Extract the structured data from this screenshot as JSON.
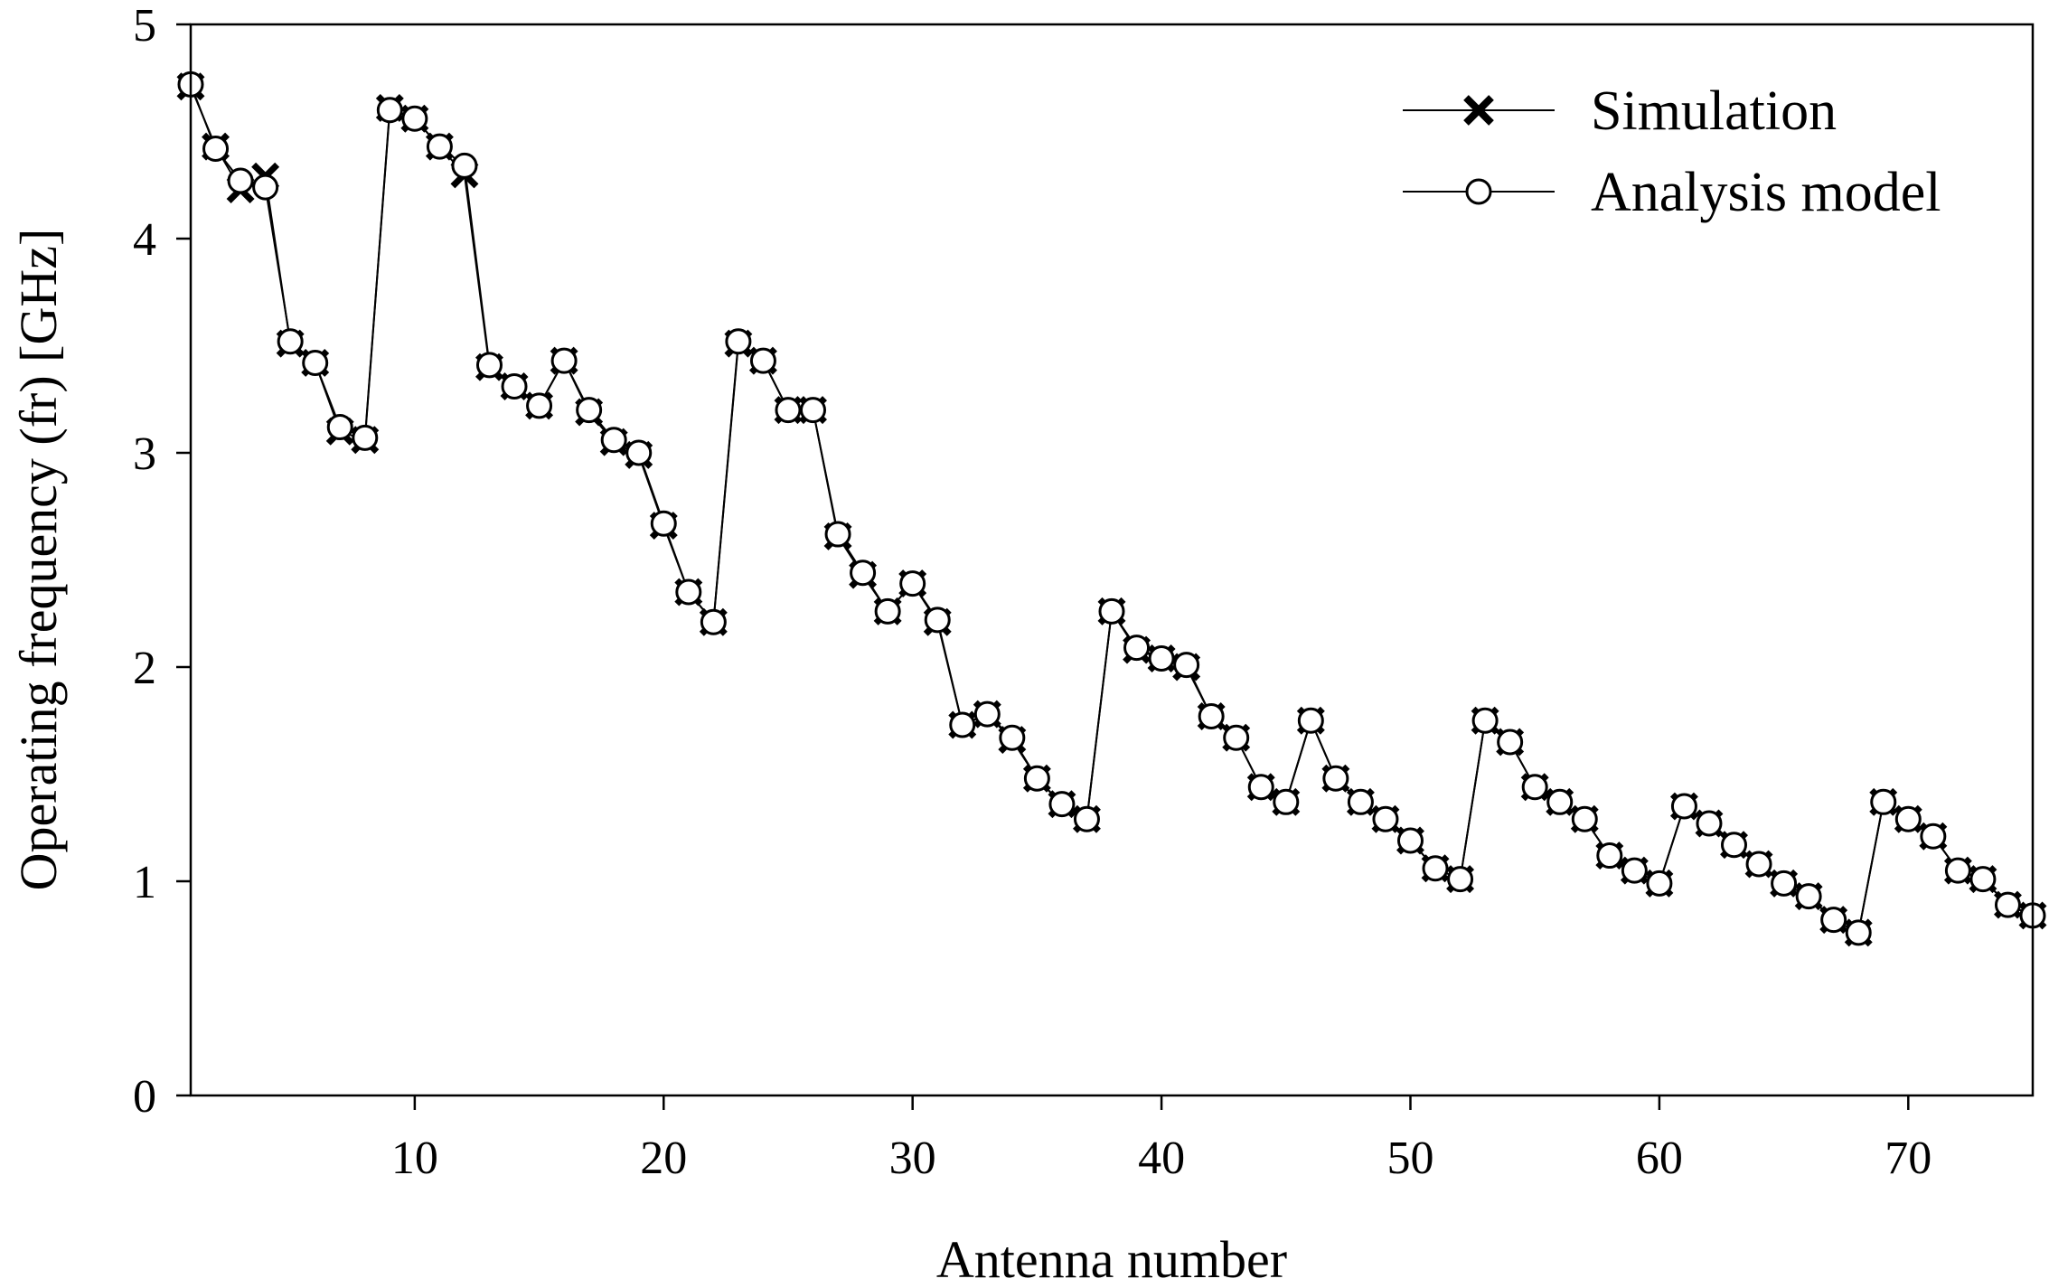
{
  "chart_data": {
    "type": "line",
    "title": "",
    "xlabel": "Antenna number",
    "ylabel": "Operating frequency (fr) [GHz]",
    "xlim": [
      1,
      75
    ],
    "ylim": [
      0,
      5
    ],
    "xticks": [
      10,
      20,
      30,
      40,
      50,
      60,
      70
    ],
    "yticks": [
      0,
      1,
      2,
      3,
      4,
      5
    ],
    "grid": false,
    "legend_position": "top-right",
    "x": [
      1,
      2,
      3,
      4,
      5,
      6,
      7,
      8,
      9,
      10,
      11,
      12,
      13,
      14,
      15,
      16,
      17,
      18,
      19,
      20,
      21,
      22,
      23,
      24,
      25,
      26,
      27,
      28,
      29,
      30,
      31,
      32,
      33,
      34,
      35,
      36,
      37,
      38,
      39,
      40,
      41,
      42,
      43,
      44,
      45,
      46,
      47,
      48,
      49,
      50,
      51,
      52,
      53,
      54,
      55,
      56,
      57,
      58,
      59,
      60,
      61,
      62,
      63,
      64,
      65,
      66,
      67,
      68,
      69,
      70,
      71,
      72,
      73,
      74,
      75
    ],
    "series": [
      {
        "name": "Simulation",
        "marker": "x",
        "values": [
          4.71,
          4.43,
          4.23,
          4.29,
          3.51,
          3.42,
          3.1,
          3.06,
          4.61,
          4.56,
          4.43,
          4.3,
          3.4,
          3.31,
          3.22,
          3.43,
          3.19,
          3.05,
          2.99,
          2.66,
          2.35,
          2.21,
          3.51,
          3.43,
          3.2,
          3.2,
          2.61,
          2.43,
          2.26,
          2.39,
          2.21,
          1.73,
          1.78,
          1.66,
          1.48,
          1.36,
          1.29,
          2.26,
          2.08,
          2.04,
          2.0,
          1.77,
          1.67,
          1.44,
          1.37,
          1.75,
          1.48,
          1.37,
          1.29,
          1.19,
          1.06,
          1.01,
          1.75,
          1.65,
          1.44,
          1.37,
          1.29,
          1.12,
          1.05,
          0.99,
          1.35,
          1.27,
          1.17,
          1.08,
          0.99,
          0.93,
          0.82,
          0.76,
          1.37,
          1.29,
          1.21,
          1.05,
          1.01,
          0.89,
          0.84
        ]
      },
      {
        "name": "Analysis model",
        "marker": "o",
        "values": [
          4.72,
          4.42,
          4.27,
          4.24,
          3.52,
          3.42,
          3.12,
          3.07,
          4.6,
          4.56,
          4.43,
          4.34,
          3.41,
          3.31,
          3.22,
          3.43,
          3.2,
          3.06,
          3.0,
          2.67,
          2.35,
          2.21,
          3.52,
          3.43,
          3.2,
          3.2,
          2.62,
          2.44,
          2.26,
          2.39,
          2.22,
          1.73,
          1.78,
          1.67,
          1.48,
          1.36,
          1.29,
          2.26,
          2.09,
          2.04,
          2.01,
          1.77,
          1.67,
          1.44,
          1.37,
          1.75,
          1.48,
          1.37,
          1.29,
          1.19,
          1.06,
          1.01,
          1.75,
          1.65,
          1.44,
          1.37,
          1.29,
          1.12,
          1.05,
          0.99,
          1.35,
          1.27,
          1.17,
          1.08,
          0.99,
          0.93,
          0.82,
          0.76,
          1.37,
          1.29,
          1.21,
          1.05,
          1.01,
          0.89,
          0.84
        ]
      }
    ]
  }
}
